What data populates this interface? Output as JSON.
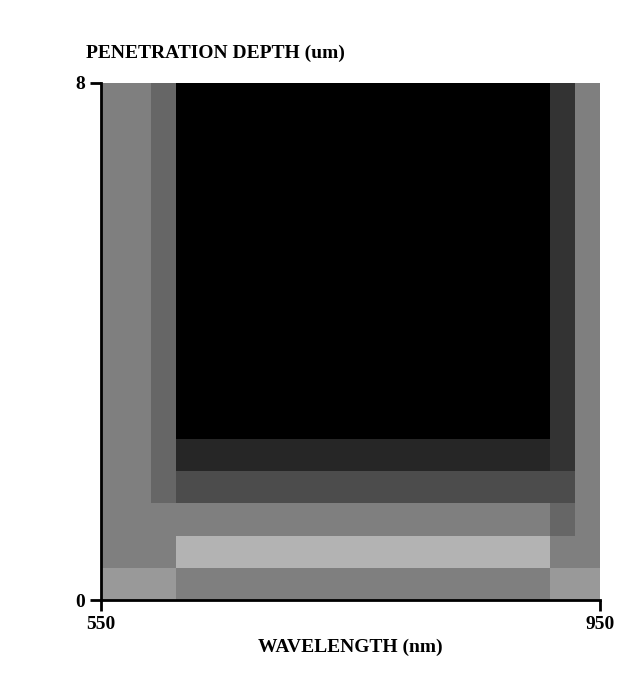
{
  "chart_data": {
    "type": "heatmap",
    "x_label": "WAVELENGTH (nm)",
    "y_label": "PENETRATION DEPTH (um)",
    "x": [
      550,
      570,
      590,
      610,
      630,
      650,
      670,
      690,
      710,
      730,
      750,
      770,
      790,
      810,
      830,
      850,
      870,
      890,
      910,
      930,
      950
    ],
    "y": [
      0,
      0.5,
      1,
      1.5,
      2,
      2.5,
      3,
      3.5,
      4,
      4.5,
      5,
      5.5,
      6,
      6.5,
      7,
      7.5,
      8
    ],
    "cells": [
      [
        0.4,
        0.4,
        0.4,
        0.5,
        0.5,
        0.5,
        0.5,
        0.5,
        0.5,
        0.5,
        0.5,
        0.5,
        0.5,
        0.5,
        0.5,
        0.5,
        0.5,
        0.5,
        0.4,
        0.4
      ],
      [
        0.5,
        0.5,
        0.5,
        0.3,
        0.3,
        0.3,
        0.3,
        0.3,
        0.3,
        0.3,
        0.3,
        0.3,
        0.3,
        0.3,
        0.3,
        0.3,
        0.3,
        0.3,
        0.5,
        0.5
      ],
      [
        0.5,
        0.5,
        0.5,
        0.5,
        0.5,
        0.5,
        0.5,
        0.5,
        0.5,
        0.5,
        0.5,
        0.5,
        0.5,
        0.5,
        0.5,
        0.5,
        0.5,
        0.5,
        0.6,
        0.5
      ],
      [
        0.5,
        0.5,
        0.6,
        0.7,
        0.7,
        0.7,
        0.7,
        0.7,
        0.7,
        0.7,
        0.7,
        0.7,
        0.7,
        0.7,
        0.7,
        0.7,
        0.7,
        0.7,
        0.7,
        0.5
      ],
      [
        0.5,
        0.5,
        0.6,
        0.85,
        0.85,
        0.85,
        0.85,
        0.85,
        0.85,
        0.85,
        0.85,
        0.85,
        0.85,
        0.85,
        0.85,
        0.85,
        0.85,
        0.85,
        0.8,
        0.5
      ],
      [
        0.5,
        0.5,
        0.6,
        1,
        1,
        1,
        1,
        1,
        1,
        1,
        1,
        1,
        1,
        1,
        1,
        1,
        1,
        1,
        0.8,
        0.5
      ],
      [
        0.5,
        0.5,
        0.6,
        1,
        1,
        1,
        1,
        1,
        1,
        1,
        1,
        1,
        1,
        1,
        1,
        1,
        1,
        1,
        0.8,
        0.5
      ],
      [
        0.5,
        0.5,
        0.6,
        1,
        1,
        1,
        1,
        1,
        1,
        1,
        1,
        1,
        1,
        1,
        1,
        1,
        1,
        1,
        0.8,
        0.5
      ],
      [
        0.5,
        0.5,
        0.6,
        1,
        1,
        1,
        1,
        1,
        1,
        1,
        1,
        1,
        1,
        1,
        1,
        1,
        1,
        1,
        0.8,
        0.5
      ],
      [
        0.5,
        0.5,
        0.6,
        1,
        1,
        1,
        1,
        1,
        1,
        1,
        1,
        1,
        1,
        1,
        1,
        1,
        1,
        1,
        0.8,
        0.5
      ],
      [
        0.5,
        0.5,
        0.6,
        1,
        1,
        1,
        1,
        1,
        1,
        1,
        1,
        1,
        1,
        1,
        1,
        1,
        1,
        1,
        0.8,
        0.5
      ],
      [
        0.5,
        0.5,
        0.6,
        1,
        1,
        1,
        1,
        1,
        1,
        1,
        1,
        1,
        1,
        1,
        1,
        1,
        1,
        1,
        0.8,
        0.5
      ],
      [
        0.5,
        0.5,
        0.6,
        1,
        1,
        1,
        1,
        1,
        1,
        1,
        1,
        1,
        1,
        1,
        1,
        1,
        1,
        1,
        0.8,
        0.5
      ],
      [
        0.5,
        0.5,
        0.6,
        1,
        1,
        1,
        1,
        1,
        1,
        1,
        1,
        1,
        1,
        1,
        1,
        1,
        1,
        1,
        0.8,
        0.5
      ],
      [
        0.5,
        0.5,
        0.6,
        1,
        1,
        1,
        1,
        1,
        1,
        1,
        1,
        1,
        1,
        1,
        1,
        1,
        1,
        1,
        0.8,
        0.5
      ],
      [
        0.5,
        0.5,
        0.6,
        1,
        1,
        1,
        1,
        1,
        1,
        1,
        1,
        1,
        1,
        1,
        1,
        1,
        1,
        1,
        0.8,
        0.5
      ]
    ],
    "color_range": [
      0,
      1
    ],
    "xlim": [
      550,
      950
    ],
    "xticks": [
      550,
      950
    ],
    "ylim": [
      0,
      8
    ],
    "yticks": [
      0,
      8
    ]
  }
}
